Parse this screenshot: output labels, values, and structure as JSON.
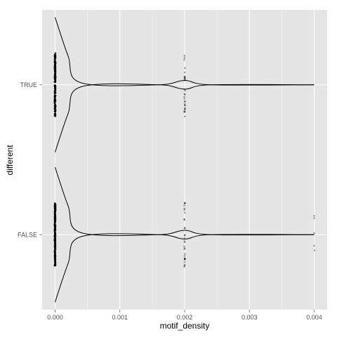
{
  "chart_data": {
    "type": "violin",
    "orientation": "horizontal",
    "xlabel": "motif_density",
    "ylabel": "different",
    "categories": [
      "FALSE",
      "TRUE"
    ],
    "xlim": [
      -0.0002,
      0.0042
    ],
    "x_ticks": [
      0.0,
      0.001,
      0.002,
      0.003,
      0.004
    ],
    "x_tick_labels": [
      "0.000",
      "0.001",
      "0.002",
      "0.003",
      "0.004"
    ],
    "grid": true,
    "panel_background": "#e5e5e5",
    "grid_color": "#ffffff",
    "outlier_color": "#bdbdbd",
    "series": [
      {
        "category": "TRUE",
        "points": [
          {
            "x": 0.0,
            "count": 200
          },
          {
            "x": 0.002,
            "count": 30
          }
        ],
        "density": [
          {
            "x": 0.0,
            "w": 1.0
          },
          {
            "x": 0.0002,
            "w": 0.43
          },
          {
            "x": 0.0004,
            "w": 0.03
          },
          {
            "x": 0.0016,
            "w": 0.0
          },
          {
            "x": 0.002,
            "w": 0.065
          },
          {
            "x": 0.0024,
            "w": 0.0
          },
          {
            "x": 0.004,
            "w": 0.0
          }
        ]
      },
      {
        "category": "FALSE",
        "points": [
          {
            "x": 0.0,
            "count": 200
          },
          {
            "x": 0.002,
            "count": 30
          },
          {
            "x": 0.004,
            "count": 5
          }
        ],
        "density": [
          {
            "x": 0.0,
            "w": 1.0
          },
          {
            "x": 0.0002,
            "w": 0.43
          },
          {
            "x": 0.0004,
            "w": 0.03
          },
          {
            "x": 0.0016,
            "w": 0.0
          },
          {
            "x": 0.002,
            "w": 0.065
          },
          {
            "x": 0.0024,
            "w": 0.0
          },
          {
            "x": 0.004,
            "w": 0.0
          }
        ]
      }
    ]
  }
}
